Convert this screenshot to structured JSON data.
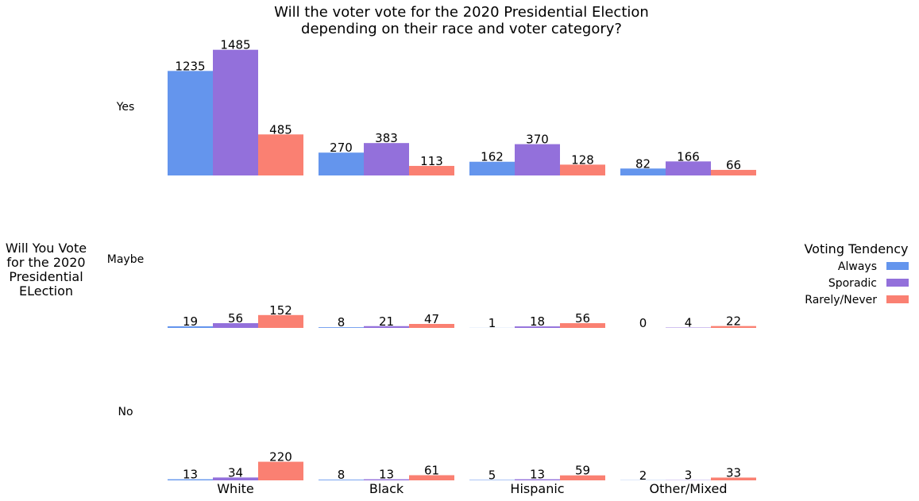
{
  "chart_data": {
    "type": "bar",
    "title_lines": [
      "Will the voter vote for the 2020 Presidential Election",
      "depending on their race and voter category?"
    ],
    "ylabel_lines": [
      "Will You Vote",
      "for the 2020",
      "Presidential",
      "ELection"
    ],
    "categories": [
      "White",
      "Black",
      "Hispanic",
      "Other/Mixed"
    ],
    "rows": [
      "Yes",
      "Maybe",
      "No"
    ],
    "legend": {
      "title": "Voting Tendency",
      "placement": "right"
    },
    "series": [
      {
        "name": "Always",
        "color": "#6495ed",
        "values": {
          "Yes": [
            1235,
            270,
            162,
            82
          ],
          "Maybe": [
            19,
            8,
            1,
            0
          ],
          "No": [
            13,
            8,
            5,
            2
          ]
        }
      },
      {
        "name": "Sporadic",
        "color": "#9370db",
        "values": {
          "Yes": [
            1485,
            383,
            370,
            166
          ],
          "Maybe": [
            56,
            21,
            18,
            4
          ],
          "No": [
            34,
            13,
            13,
            3
          ]
        }
      },
      {
        "name": "Rarely/Never",
        "color": "#fa8072",
        "values": {
          "Yes": [
            485,
            113,
            128,
            66
          ],
          "Maybe": [
            152,
            47,
            56,
            22
          ],
          "No": [
            220,
            61,
            59,
            33
          ]
        }
      }
    ],
    "grid": false
  }
}
